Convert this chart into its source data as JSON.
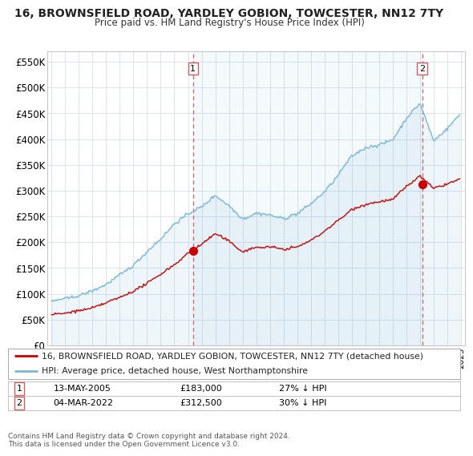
{
  "title1": "16, BROWNSFIELD ROAD, YARDLEY GOBION, TOWCESTER, NN12 7TY",
  "title2": "Price paid vs. HM Land Registry's House Price Index (HPI)",
  "legend_line1": "16, BROWNSFIELD ROAD, YARDLEY GOBION, TOWCESTER, NN12 7TY (detached house)",
  "legend_line2": "HPI: Average price, detached house, West Northamptonshire",
  "footer": "Contains HM Land Registry data © Crown copyright and database right 2024.\nThis data is licensed under the Open Government Licence v3.0.",
  "transaction1_date": "13-MAY-2005",
  "transaction1_price": "£183,000",
  "transaction1_hpi": "27% ↓ HPI",
  "transaction1_x": 2005.37,
  "transaction1_y": 183000,
  "transaction2_date": "04-MAR-2022",
  "transaction2_price": "£312,500",
  "transaction2_hpi": "30% ↓ HPI",
  "transaction2_x": 2022.17,
  "transaction2_y": 312500,
  "ylabel_ticks": [
    "£0",
    "£50K",
    "£100K",
    "£150K",
    "£200K",
    "£250K",
    "£300K",
    "£350K",
    "£400K",
    "£450K",
    "£500K",
    "£550K"
  ],
  "ytick_values": [
    0,
    50000,
    100000,
    150000,
    200000,
    250000,
    300000,
    350000,
    400000,
    450000,
    500000,
    550000
  ],
  "ylim": [
    0,
    570000
  ],
  "xlim_start": 1994.7,
  "xlim_end": 2025.3,
  "hpi_color": "#7ab8d8",
  "hpi_fill_color": "#ddeef7",
  "price_color": "#cc0000",
  "vline_color": "#d06060",
  "bg_color": "#ffffff",
  "grid_color": "#d8e4ed"
}
